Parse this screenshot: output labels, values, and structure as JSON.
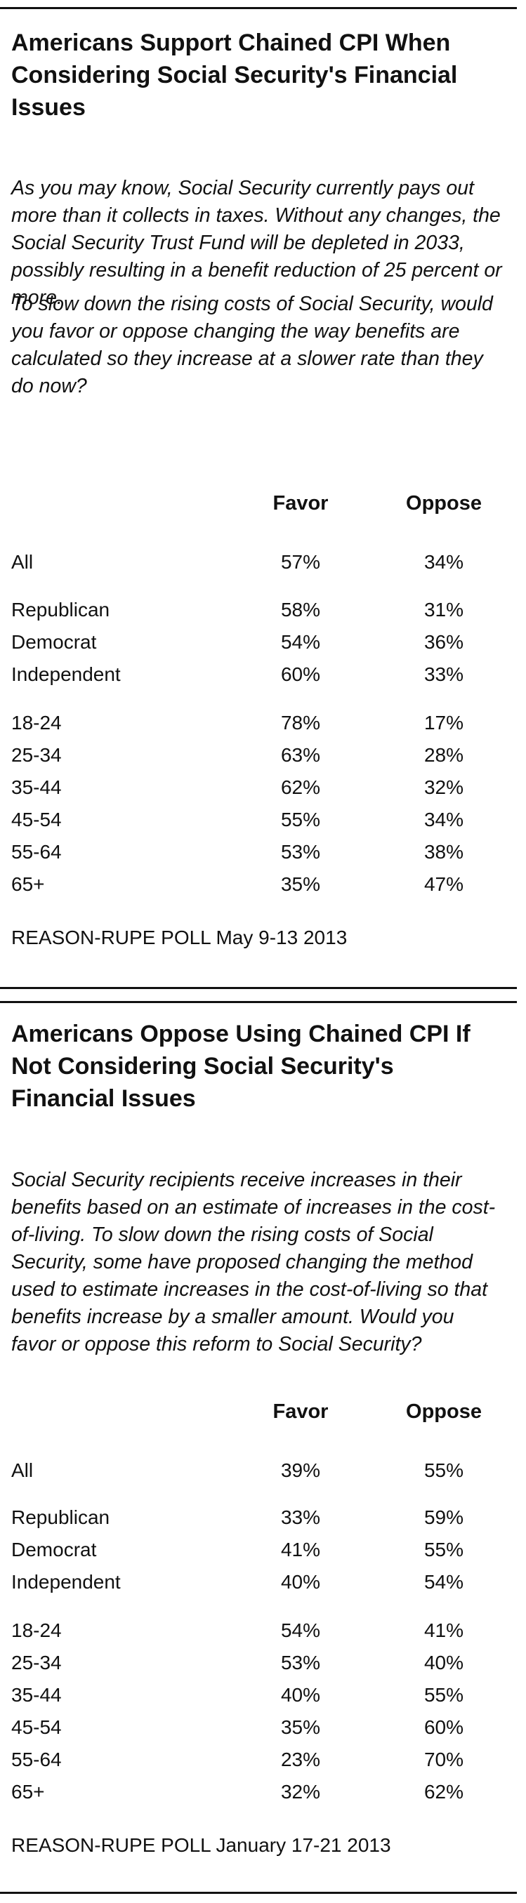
{
  "table1": {
    "title": "Americans Support Chained CPI When Considering Social Security's Financial Issues",
    "intro_1": "As you may know, Social Security currently pays out more than it collects in taxes. Without any changes, the Social Security Trust Fund will be depleted in 2033, possibly resulting in a benefit reduction of 25 percent or more.",
    "intro_2": "To slow down the rising costs of Social Security, would you favor or oppose changing the way benefits are calculated so they increase at a slower rate than they do now?",
    "col_favor": "Favor",
    "col_oppose": "Oppose",
    "rows": [
      {
        "label": "All",
        "favor": "57%",
        "oppose": "34%"
      },
      {
        "label": "Republican",
        "favor": "58%",
        "oppose": "31%"
      },
      {
        "label": "Democrat",
        "favor": "54%",
        "oppose": "36%"
      },
      {
        "label": "Independent",
        "favor": "60%",
        "oppose": "33%"
      },
      {
        "label": "18-24",
        "favor": "78%",
        "oppose": "17%"
      },
      {
        "label": "25-34",
        "favor": "63%",
        "oppose": "28%"
      },
      {
        "label": "35-44",
        "favor": "62%",
        "oppose": "32%"
      },
      {
        "label": "45-54",
        "favor": "55%",
        "oppose": "34%"
      },
      {
        "label": "55-64",
        "favor": "53%",
        "oppose": "38%"
      },
      {
        "label": "65+",
        "favor": "35%",
        "oppose": "47%"
      }
    ],
    "source": "REASON-RUPE POLL May 9-13 2013"
  },
  "table2": {
    "title": "Americans Oppose Using Chained CPI If Not Considering Social Security's Financial Issues",
    "intro_1": "Social Security recipients receive increases in their benefits based on an estimate of increases in the cost-of-living. To slow down the rising costs of Social Security, some have proposed changing the method used to estimate increases in the cost-of-living so that benefits increase by a smaller amount. Would you favor or oppose this reform to Social Security?",
    "col_favor": "Favor",
    "col_oppose": "Oppose",
    "rows": [
      {
        "label": "All",
        "favor": "39%",
        "oppose": "55%"
      },
      {
        "label": "Republican",
        "favor": "33%",
        "oppose": "59%"
      },
      {
        "label": "Democrat",
        "favor": "41%",
        "oppose": "55%"
      },
      {
        "label": "Independent",
        "favor": "40%",
        "oppose": "54%"
      },
      {
        "label": "18-24",
        "favor": "54%",
        "oppose": "41%"
      },
      {
        "label": "25-34",
        "favor": "53%",
        "oppose": "40%"
      },
      {
        "label": "35-44",
        "favor": "40%",
        "oppose": "55%"
      },
      {
        "label": "45-54",
        "favor": "35%",
        "oppose": "60%"
      },
      {
        "label": "55-64",
        "favor": "23%",
        "oppose": "70%"
      },
      {
        "label": "65+",
        "favor": "32%",
        "oppose": "62%"
      }
    ],
    "source": "REASON-RUPE POLL January 17-21 2013"
  }
}
